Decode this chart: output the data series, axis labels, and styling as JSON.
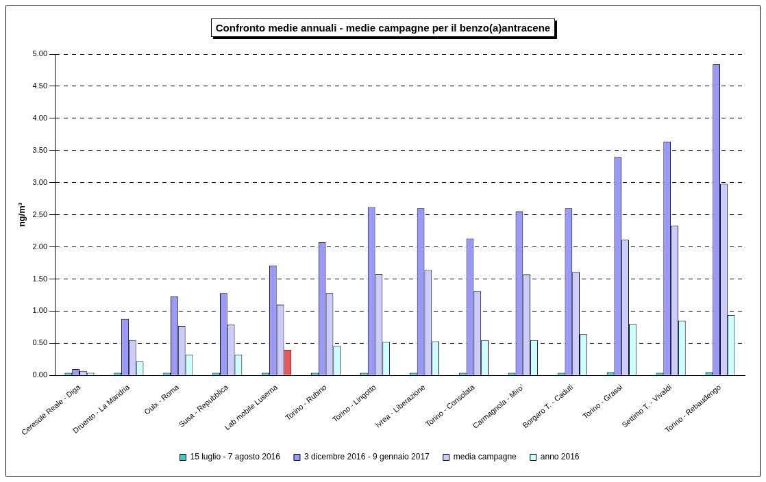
{
  "chart_data": {
    "type": "bar",
    "title": "Confronto medie annuali - medie campagne per il benzo(a)antracene",
    "ylabel": "ng/m³",
    "categories": [
      "Ceresole Reale - Diga",
      "Druento - La Mandria",
      "Oulx - Roma",
      "Susa - Repubblica",
      "Lab mobile Luserna",
      "Torino - Rubino",
      "Torino - Lingotto",
      "Ivrea - Liberazione",
      "Torino - Consolata",
      "Carmagnola - Miro'",
      "Borgaro T. - Caduti",
      "Torino - Grassi",
      "Settimo T. - Vivaldi",
      "Torino - Rebaudengo"
    ],
    "series": [
      {
        "name": "15 luglio - 7 agosto 2016",
        "color": "#33cccc",
        "values": [
          0.04,
          0.04,
          0.04,
          0.04,
          0.04,
          0.04,
          0.04,
          0.04,
          0.04,
          0.04,
          0.04,
          0.05,
          0.04,
          0.05
        ]
      },
      {
        "name": "3 dicembre 2016 - 9 gennaio 2017",
        "color": "#9999ff",
        "values": [
          0.1,
          0.88,
          1.23,
          1.28,
          1.71,
          2.07,
          2.62,
          2.6,
          2.13,
          2.55,
          2.6,
          3.4,
          3.64,
          4.84
        ]
      },
      {
        "name": "media campagne",
        "color": "#ccccff",
        "values": [
          0.07,
          0.55,
          0.77,
          0.79,
          1.1,
          1.28,
          1.58,
          1.64,
          1.31,
          1.57,
          1.61,
          2.11,
          2.33,
          2.98
        ]
      },
      {
        "name": "anno 2016",
        "color": "#ccffff",
        "colors": [
          "#ccffff",
          "#ccffff",
          "#ccffff",
          "#ccffff",
          "#ee5555",
          "#ccffff",
          "#ccffff",
          "#ccffff",
          "#ccffff",
          "#ccffff",
          "#ccffff",
          "#ccffff",
          "#ccffff",
          "#ccffff"
        ],
        "values": [
          0.04,
          0.22,
          0.32,
          0.32,
          0.4,
          0.46,
          0.52,
          0.53,
          0.55,
          0.55,
          0.64,
          0.8,
          0.85,
          0.94
        ]
      }
    ],
    "ylim": [
      0,
      5
    ],
    "yticks": [
      {
        "value": 0,
        "label": "0.00"
      },
      {
        "value": 0.5,
        "label": "0.50"
      },
      {
        "value": 1,
        "label": "1.00"
      },
      {
        "value": 1.5,
        "label": "1.50"
      },
      {
        "value": 2,
        "label": "2.00"
      },
      {
        "value": 2.5,
        "label": "2.50"
      },
      {
        "value": 3,
        "label": "3.00"
      },
      {
        "value": 3.5,
        "label": "3.50"
      },
      {
        "value": 4,
        "label": "4.00"
      },
      {
        "value": 4.5,
        "label": "4.50"
      },
      {
        "value": 5,
        "label": "5.00"
      }
    ],
    "grid": "y",
    "legend": "bottom"
  }
}
